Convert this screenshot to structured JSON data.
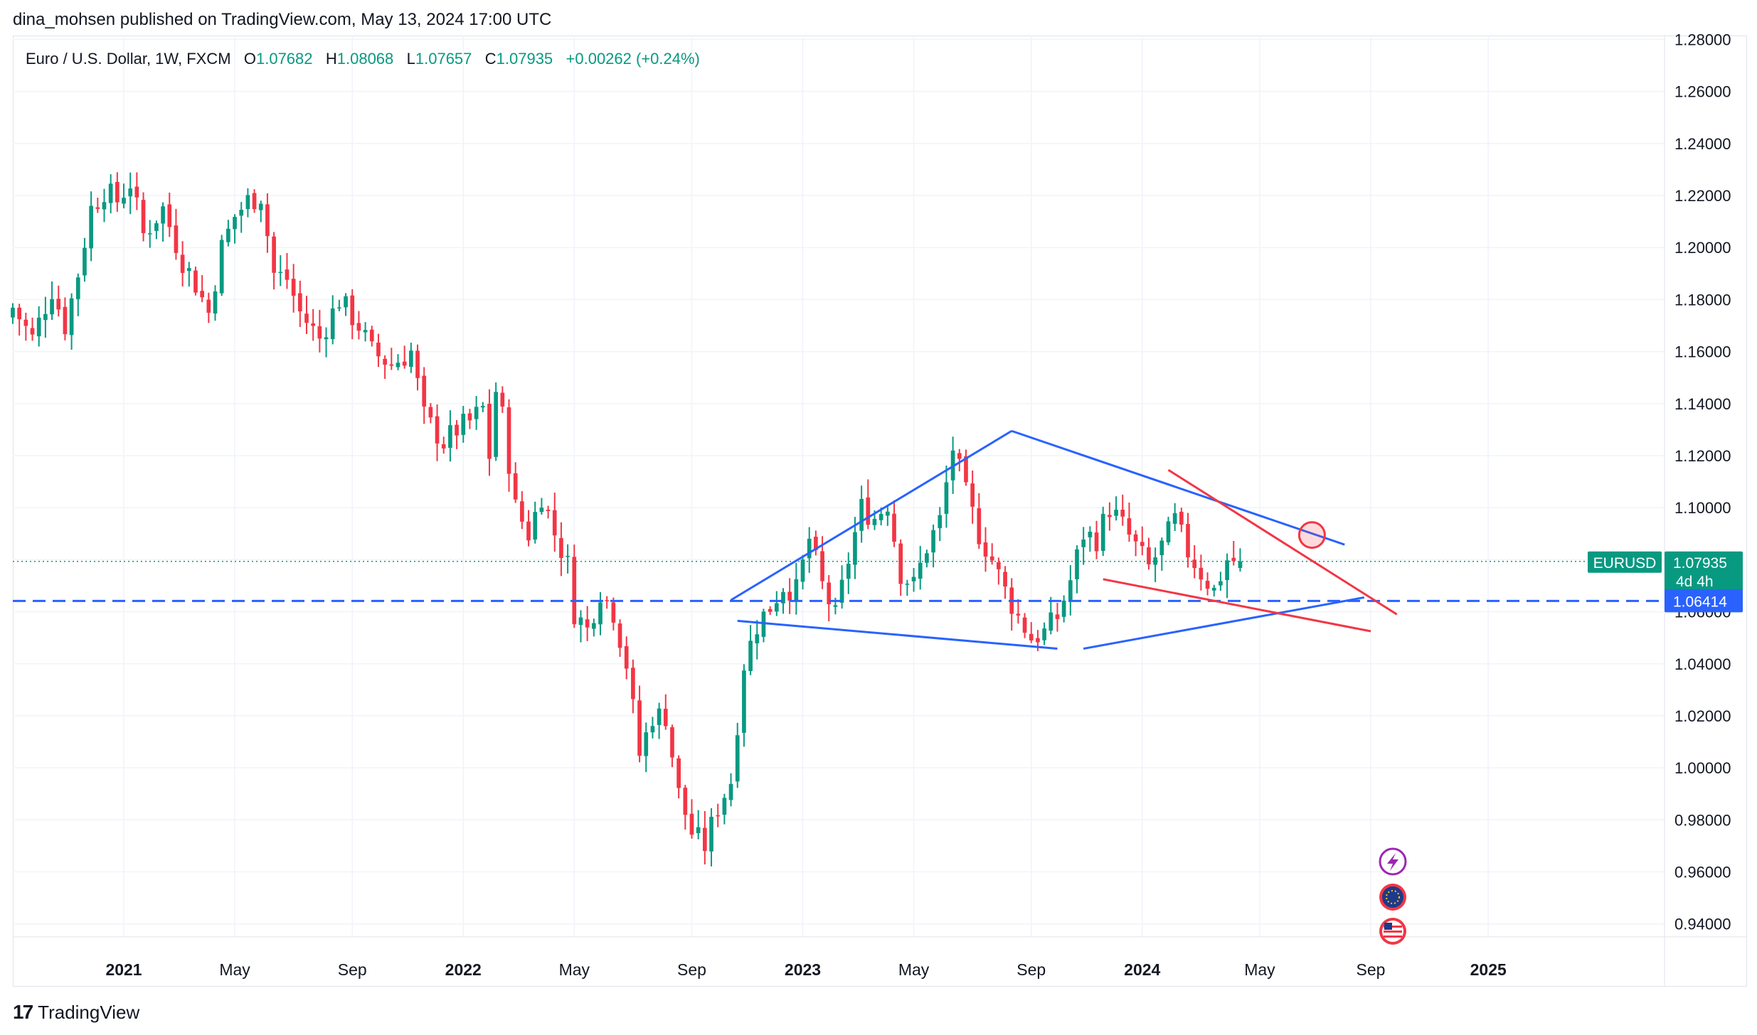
{
  "header": {
    "publish_line": "dina_mohsen published on TradingView.com, May 13, 2024 17:00 UTC"
  },
  "legend": {
    "symbol": "Euro / U.S. Dollar, 1W, FXCM",
    "open_label": "O",
    "open": "1.07682",
    "high_label": "H",
    "high": "1.08068",
    "low_label": "L",
    "low": "1.07657",
    "close_label": "C",
    "close": "1.07935",
    "change": "+0.00262 (+0.24%)"
  },
  "footer": {
    "brand": "TradingView",
    "brand_mark": "17"
  },
  "colors": {
    "up": "#089981",
    "down": "#f23645",
    "blue_line": "#2962ff",
    "red_line": "#f23645",
    "grid": "#f0f3fa"
  },
  "chart_data": {
    "type": "candlestick",
    "title": "Euro / U.S. Dollar, 1W, FXCM",
    "ylim": [
      0.935,
      1.2815
    ],
    "y_ticks": [
      "1.28000",
      "1.26000",
      "1.24000",
      "1.22000",
      "1.20000",
      "1.18000",
      "1.16000",
      "1.14000",
      "1.12000",
      "1.10000",
      "1.08000",
      "1.06000",
      "1.04000",
      "1.02000",
      "1.00000",
      "0.98000",
      "0.96000",
      "0.94000"
    ],
    "y_tick_values": [
      1.28,
      1.26,
      1.24,
      1.22,
      1.2,
      1.18,
      1.16,
      1.14,
      1.12,
      1.1,
      1.08,
      1.06,
      1.04,
      1.02,
      1.0,
      0.98,
      0.96,
      0.94
    ],
    "x_range_weeks": [
      0,
      253
    ],
    "x_ticks": [
      {
        "label": "2021",
        "week": 17,
        "year": true
      },
      {
        "label": "May",
        "week": 34,
        "year": false
      },
      {
        "label": "Sep",
        "week": 52,
        "year": false
      },
      {
        "label": "2022",
        "week": 69,
        "year": true
      },
      {
        "label": "May",
        "week": 86,
        "year": false
      },
      {
        "label": "Sep",
        "week": 104,
        "year": false
      },
      {
        "label": "2023",
        "week": 121,
        "year": true
      },
      {
        "label": "May",
        "week": 138,
        "year": false
      },
      {
        "label": "Sep",
        "week": 156,
        "year": false
      },
      {
        "label": "2024",
        "week": 173,
        "year": true
      },
      {
        "label": "May",
        "week": 191,
        "year": false
      },
      {
        "label": "Sep",
        "week": 208,
        "year": false
      },
      {
        "label": "2025",
        "week": 226,
        "year": true
      }
    ],
    "close_path": [
      [
        0,
        1.177
      ],
      [
        3,
        1.165
      ],
      [
        6,
        1.184
      ],
      [
        8,
        1.17
      ],
      [
        10,
        1.19
      ],
      [
        12,
        1.215
      ],
      [
        14,
        1.222
      ],
      [
        16,
        1.218
      ],
      [
        18,
        1.225
      ],
      [
        20,
        1.205
      ],
      [
        23,
        1.215
      ],
      [
        26,
        1.195
      ],
      [
        28,
        1.186
      ],
      [
        30,
        1.175
      ],
      [
        32,
        1.2
      ],
      [
        34,
        1.212
      ],
      [
        36,
        1.218
      ],
      [
        38,
        1.22
      ],
      [
        40,
        1.19
      ],
      [
        42,
        1.188
      ],
      [
        44,
        1.175
      ],
      [
        47,
        1.165
      ],
      [
        50,
        1.18
      ],
      [
        53,
        1.17
      ],
      [
        55,
        1.16
      ],
      [
        58,
        1.155
      ],
      [
        61,
        1.16
      ],
      [
        63,
        1.135
      ],
      [
        66,
        1.125
      ],
      [
        68,
        1.13
      ],
      [
        70,
        1.133
      ],
      [
        72,
        1.138
      ],
      [
        73,
        1.12
      ],
      [
        74,
        1.145
      ],
      [
        75,
        1.135
      ],
      [
        77,
        1.1
      ],
      [
        79,
        1.09
      ],
      [
        81,
        1.105
      ],
      [
        83,
        1.09
      ],
      [
        85,
        1.078
      ],
      [
        86,
        1.06
      ],
      [
        88,
        1.053
      ],
      [
        90,
        1.068
      ],
      [
        92,
        1.06
      ],
      [
        94,
        1.04
      ],
      [
        96,
        1.005
      ],
      [
        98,
        1.02
      ],
      [
        100,
        1.02
      ],
      [
        102,
        0.99
      ],
      [
        104,
        0.975
      ],
      [
        106,
        0.97
      ],
      [
        108,
        0.985
      ],
      [
        110,
        0.995
      ],
      [
        112,
        1.04
      ],
      [
        114,
        1.055
      ],
      [
        116,
        1.062
      ],
      [
        118,
        1.07
      ],
      [
        120,
        1.068
      ],
      [
        122,
        1.088
      ],
      [
        124,
        1.07
      ],
      [
        126,
        1.058
      ],
      [
        128,
        1.08
      ],
      [
        130,
        1.1
      ],
      [
        132,
        1.096
      ],
      [
        134,
        1.102
      ],
      [
        136,
        1.075
      ],
      [
        138,
        1.07
      ],
      [
        140,
        1.085
      ],
      [
        142,
        1.095
      ],
      [
        144,
        1.123
      ],
      [
        146,
        1.105
      ],
      [
        148,
        1.09
      ],
      [
        150,
        1.08
      ],
      [
        152,
        1.068
      ],
      [
        154,
        1.058
      ],
      [
        156,
        1.05
      ],
      [
        158,
        1.052
      ],
      [
        160,
        1.058
      ],
      [
        162,
        1.072
      ],
      [
        164,
        1.09
      ],
      [
        166,
        1.088
      ],
      [
        168,
        1.1
      ],
      [
        170,
        1.093
      ],
      [
        172,
        1.085
      ],
      [
        174,
        1.077
      ],
      [
        176,
        1.085
      ],
      [
        178,
        1.095
      ],
      [
        180,
        1.083
      ],
      [
        182,
        1.075
      ],
      [
        184,
        1.068
      ],
      [
        186,
        1.08
      ],
      [
        188,
        1.0794
      ]
    ],
    "current_price": {
      "label": "EURUSD",
      "value": "1.07935",
      "countdown": "4d 4h"
    },
    "level_line": {
      "value": "1.06414",
      "style": "dashed",
      "color": "#2962ff"
    },
    "drawings": [
      {
        "kind": "trendline",
        "color": "blue",
        "from": [
          110,
          1.0645
        ],
        "to": [
          153,
          1.1295
        ]
      },
      {
        "kind": "trendline",
        "color": "blue",
        "from": [
          111,
          1.0565
        ],
        "to": [
          160,
          1.0458
        ]
      },
      {
        "kind": "trendline",
        "color": "blue",
        "from": [
          153,
          1.1295
        ],
        "to": [
          204,
          1.0858
        ]
      },
      {
        "kind": "trendline",
        "color": "blue",
        "from": [
          164,
          1.0458
        ],
        "to": [
          207,
          1.0655
        ]
      },
      {
        "kind": "trendline",
        "color": "red",
        "from": [
          177,
          1.1145
        ],
        "to": [
          212,
          1.059
        ]
      },
      {
        "kind": "trendline",
        "color": "red",
        "from": [
          167,
          1.0725
        ],
        "to": [
          208,
          1.0525
        ]
      },
      {
        "kind": "circle",
        "color": "red",
        "at": [
          199,
          1.0895
        ]
      }
    ],
    "event_icons": [
      "lightning-icon",
      "eu-flag-icon",
      "us-flag-icon"
    ]
  }
}
